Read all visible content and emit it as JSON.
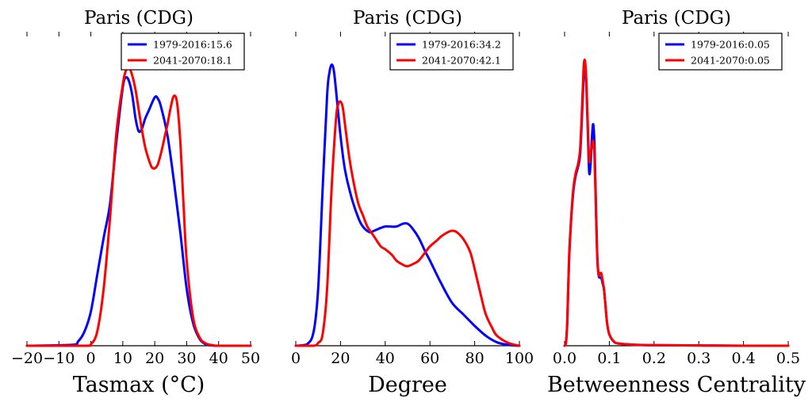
{
  "chart_data": [
    {
      "type": "line",
      "title": "Paris (CDG)",
      "xlabel": "Tasmax (°C)",
      "ylabel": "",
      "xlim": [
        -20,
        50
      ],
      "xticks": [
        -20,
        -10,
        0,
        10,
        20,
        30,
        40,
        50
      ],
      "tick_labels": [
        "−20",
        "−10",
        "0",
        "10",
        "20",
        "30",
        "40",
        "50"
      ],
      "ylim": [
        0,
        1.0
      ],
      "legend_position": "top-right",
      "series": [
        {
          "name": "1979-2016:15.6",
          "color": "#0000ff",
          "x": [
            -20,
            -6,
            -4,
            -2,
            0,
            2,
            4,
            6,
            8,
            10,
            11,
            12,
            13,
            14,
            15,
            16,
            17,
            18,
            20,
            21,
            22,
            24,
            26,
            28,
            30,
            32,
            34,
            36,
            38,
            40,
            50
          ],
          "y": [
            0,
            0.003,
            0.015,
            0.05,
            0.12,
            0.25,
            0.38,
            0.5,
            0.72,
            0.91,
            0.945,
            0.93,
            0.88,
            0.8,
            0.755,
            0.765,
            0.8,
            0.825,
            0.875,
            0.87,
            0.84,
            0.74,
            0.58,
            0.4,
            0.2,
            0.08,
            0.025,
            0.005,
            0.001,
            0,
            0
          ]
        },
        {
          "name": "2041-2070:18.1",
          "color": "#ff0000",
          "x": [
            -20,
            -2,
            0,
            2,
            4,
            6,
            8,
            10,
            11,
            12,
            13,
            14,
            15,
            16,
            17,
            18,
            19,
            20,
            21,
            22,
            23,
            24,
            25,
            26,
            27,
            28,
            29,
            30,
            32,
            34,
            36,
            38,
            40,
            50
          ],
          "y": [
            0,
            0,
            0.005,
            0.05,
            0.2,
            0.45,
            0.75,
            0.92,
            0.97,
            0.98,
            0.95,
            0.9,
            0.83,
            0.76,
            0.7,
            0.66,
            0.63,
            0.625,
            0.64,
            0.68,
            0.73,
            0.78,
            0.84,
            0.88,
            0.855,
            0.72,
            0.5,
            0.3,
            0.1,
            0.03,
            0.008,
            0.002,
            0,
            0
          ]
        }
      ]
    },
    {
      "type": "line",
      "title": "Paris (CDG)",
      "xlabel": "Degree",
      "ylabel": "",
      "xlim": [
        0,
        100
      ],
      "xticks": [
        0,
        20,
        40,
        60,
        80,
        100
      ],
      "tick_labels": [
        "0",
        "20",
        "40",
        "60",
        "80",
        "100"
      ],
      "ylim": [
        0,
        1.0
      ],
      "legend_position": "top-right",
      "series": [
        {
          "name": "1979-2016:34.2",
          "color": "#0000ff",
          "x": [
            0,
            5,
            8,
            10,
            12,
            14,
            15,
            16,
            17,
            18,
            20,
            22,
            25,
            28,
            30,
            33,
            35,
            38,
            40,
            42,
            45,
            48,
            50,
            52,
            55,
            58,
            60,
            65,
            70,
            75,
            80,
            85,
            90,
            95,
            100
          ],
          "y": [
            0,
            0.005,
            0.05,
            0.2,
            0.55,
            0.88,
            0.96,
            0.99,
            0.97,
            0.9,
            0.74,
            0.62,
            0.52,
            0.45,
            0.42,
            0.4,
            0.405,
            0.415,
            0.42,
            0.42,
            0.42,
            0.43,
            0.43,
            0.415,
            0.38,
            0.33,
            0.3,
            0.22,
            0.15,
            0.11,
            0.07,
            0.035,
            0.012,
            0.003,
            0
          ]
        },
        {
          "name": "2041-2070:42.1",
          "color": "#ff0000",
          "x": [
            0,
            8,
            10,
            12,
            14,
            16,
            18,
            19,
            20,
            21,
            22,
            24,
            26,
            28,
            30,
            32,
            35,
            38,
            40,
            43,
            45,
            48,
            50,
            53,
            55,
            58,
            60,
            63,
            65,
            68,
            70,
            72,
            75,
            78,
            80,
            83,
            85,
            88,
            90,
            95,
            100
          ],
          "y": [
            0,
            0,
            0.01,
            0.04,
            0.2,
            0.55,
            0.8,
            0.85,
            0.86,
            0.84,
            0.78,
            0.66,
            0.57,
            0.5,
            0.46,
            0.42,
            0.385,
            0.35,
            0.34,
            0.32,
            0.3,
            0.285,
            0.28,
            0.29,
            0.3,
            0.33,
            0.35,
            0.37,
            0.385,
            0.4,
            0.405,
            0.4,
            0.375,
            0.33,
            0.27,
            0.17,
            0.11,
            0.06,
            0.035,
            0.01,
            0
          ]
        }
      ]
    },
    {
      "type": "line",
      "title": "Paris (CDG)",
      "xlabel": "Betweenness Centrality",
      "ylabel": "",
      "xlim": [
        0,
        0.5
      ],
      "xticks": [
        0,
        0.1,
        0.2,
        0.3,
        0.4,
        0.5
      ],
      "tick_labels": [
        "0.0",
        "0.1",
        "0.2",
        "0.3",
        "0.4",
        "0.5"
      ],
      "ylim": [
        0,
        1.0
      ],
      "legend_position": "top-right",
      "series": [
        {
          "name": "1979-2016:0.05",
          "color": "#0000ff",
          "x": [
            0,
            0.003,
            0.006,
            0.01,
            0.015,
            0.02,
            0.025,
            0.03,
            0.035,
            0.04,
            0.043,
            0.046,
            0.049,
            0.052,
            0.055,
            0.058,
            0.061,
            0.064,
            0.067,
            0.07,
            0.073,
            0.076,
            0.079,
            0.082,
            0.085,
            0.088,
            0.091,
            0.095,
            0.1,
            0.11,
            0.12,
            0.15,
            0.2,
            0.3,
            0.4,
            0.5
          ],
          "y": [
            0,
            0.01,
            0.08,
            0.3,
            0.45,
            0.55,
            0.6,
            0.63,
            0.68,
            0.85,
            0.96,
            0.98,
            0.9,
            0.75,
            0.61,
            0.64,
            0.73,
            0.78,
            0.7,
            0.5,
            0.32,
            0.25,
            0.24,
            0.24,
            0.22,
            0.2,
            0.15,
            0.08,
            0.04,
            0.015,
            0.008,
            0.004,
            0.002,
            0.001,
            0,
            0
          ]
        },
        {
          "name": "2041-2070:0.05",
          "color": "#ff0000",
          "x": [
            0,
            0.003,
            0.006,
            0.01,
            0.015,
            0.02,
            0.025,
            0.03,
            0.035,
            0.04,
            0.043,
            0.046,
            0.049,
            0.052,
            0.055,
            0.058,
            0.061,
            0.064,
            0.067,
            0.07,
            0.073,
            0.076,
            0.079,
            0.082,
            0.085,
            0.088,
            0.091,
            0.095,
            0.1,
            0.11,
            0.12,
            0.15,
            0.2,
            0.3,
            0.4,
            0.5
          ],
          "y": [
            0,
            0.01,
            0.09,
            0.31,
            0.46,
            0.56,
            0.61,
            0.64,
            0.7,
            0.88,
            0.99,
            1.0,
            0.92,
            0.77,
            0.65,
            0.68,
            0.7,
            0.72,
            0.66,
            0.48,
            0.31,
            0.25,
            0.255,
            0.255,
            0.23,
            0.2,
            0.15,
            0.08,
            0.04,
            0.015,
            0.008,
            0.004,
            0.002,
            0.001,
            0,
            0
          ]
        }
      ]
    }
  ]
}
